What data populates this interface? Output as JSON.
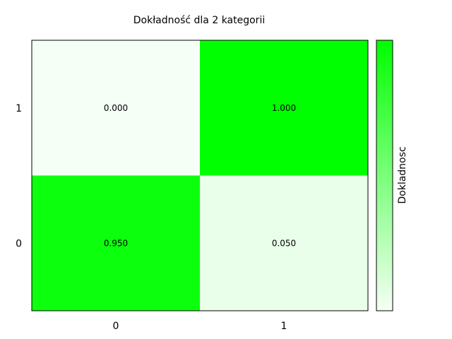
{
  "chart_data": {
    "type": "heatmap",
    "title": "Dokładność dla 2 kategorii",
    "x_categories": [
      "0",
      "1"
    ],
    "y_categories": [
      "0",
      "1"
    ],
    "values": [
      [
        0.95,
        0.05
      ],
      [
        0.0,
        1.0
      ]
    ],
    "cell_labels": [
      [
        "0.950",
        "0.050"
      ],
      [
        "0.000",
        "1.000"
      ]
    ],
    "colorbar": {
      "label": "Dokladnosc",
      "range": [
        0,
        1
      ],
      "low_color": "#f5fff5",
      "high_color": "#00ff00"
    },
    "grid": false
  }
}
